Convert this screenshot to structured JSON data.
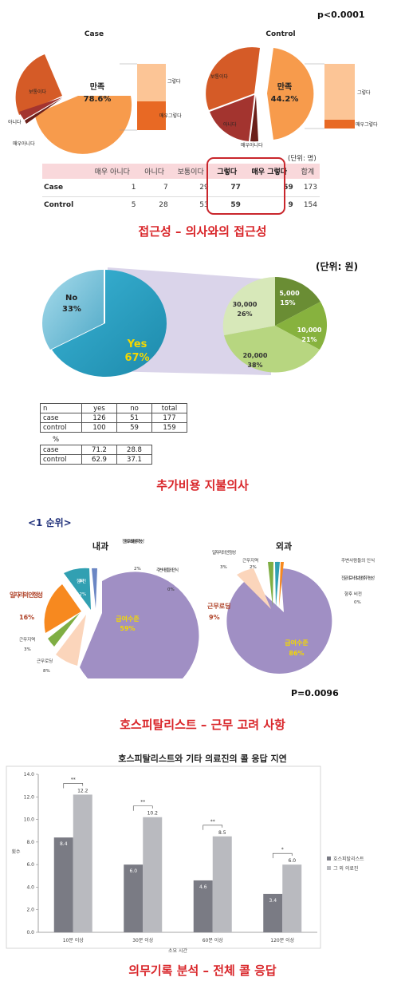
{
  "panel1": {
    "pvalue": "p<0.0001",
    "unit": "(단위: 명)",
    "caption": "접근성 – 의사와의 접근성",
    "case_pie": {
      "title": "Case",
      "main_label": "만족",
      "main_pct": "78.6%",
      "labels": [
        "보통이다",
        "아니다",
        "매우아니다"
      ],
      "bar_labels": [
        "그렇다",
        "매우그렇다"
      ]
    },
    "control_pie": {
      "title": "Control",
      "main_label": "만족",
      "main_pct": "44.2%",
      "labels": [
        "보통이다",
        "아니다",
        "매우아니다"
      ],
      "bar_labels": [
        "그렇다",
        "매우그렇다"
      ]
    },
    "table": {
      "headers": [
        "매우 아니다",
        "아니다",
        "보통이다",
        "그렇다",
        "매우 그렇다",
        "합계"
      ],
      "rows": [
        {
          "label": "Case",
          "values": [
            "1",
            "7",
            "29",
            "77",
            "59",
            "173"
          ]
        },
        {
          "label": "Control",
          "values": [
            "5",
            "28",
            "53",
            "59",
            "9",
            "154"
          ]
        }
      ]
    }
  },
  "panel2": {
    "unit": "(단위: 원)",
    "caption": "추가비용 지불의사",
    "main_pie": {
      "no_label": "No",
      "no_pct": "33%",
      "yes_label": "Yes",
      "yes_pct": "67%"
    },
    "detail_pie": {
      "slices": [
        {
          "label": "5,000",
          "pct": "15%"
        },
        {
          "label": "10,000",
          "pct": "21%"
        },
        {
          "label": "20,000",
          "pct": "38%"
        },
        {
          "label": "30,000",
          "pct": "26%"
        }
      ]
    },
    "table1": {
      "headers": [
        "n",
        "yes",
        "no",
        "total"
      ],
      "rows": [
        {
          "label": "case",
          "values": [
            "126",
            "51",
            "177"
          ]
        },
        {
          "label": "control",
          "values": [
            "100",
            "59",
            "159"
          ]
        }
      ]
    },
    "table2": {
      "headers": [
        "%",
        "",
        ""
      ],
      "rows": [
        {
          "label": "case",
          "values": [
            "71.2",
            "28.8"
          ]
        },
        {
          "label": "control",
          "values": [
            "62.9",
            "37.1"
          ]
        }
      ]
    }
  },
  "panel3": {
    "rank": "<1 순위>",
    "pvalue": "P=0.0096",
    "caption": "호스피탈리스트 – 근무 고려 사항",
    "internal": {
      "title": "내과",
      "labels": {
        "salary": "급여수준",
        "salary_pct": "59%",
        "job": "일자리의 안정성",
        "job_pct": "16%",
        "future": "향후 비전",
        "future_pct": "12%",
        "specialty": "전문의로서의 보람성취가능성",
        "specialty_pct": "2%",
        "perception": "주변사람들의 인식",
        "perception_pct": "0%",
        "region": "근무지역",
        "region_pct": "3%",
        "loading": "근무로딩",
        "loading_pct": "8%"
      }
    },
    "surgery": {
      "title": "외과",
      "labels": {
        "salary": "급여수준",
        "salary_pct": "86%",
        "loading": "근무로딩",
        "loading_pct": "9%",
        "job": "일자리의 안정성",
        "job_pct": "3%",
        "region": "근무지역",
        "region_pct": "2%",
        "perception": "주변사람들의 인식",
        "perception_pct": "",
        "specialty": "전문의로서의 보람성취가능성",
        "specialty_pct": "",
        "future": "향후 비전",
        "future_pct": "0%"
      }
    }
  },
  "panel4": {
    "caption": "의무기록 분석 – 전체 콜 응답",
    "colors": {
      "hospitalist": "#7a7b84",
      "other": "#b9babf"
    }
  },
  "chart_data": {
    "type": "bar",
    "title": "호스피탈리스트와 기타 의료진의 콜 응답 지연",
    "xlabel": "소요 시간",
    "ylabel": "횟수",
    "ylim": [
      0,
      14
    ],
    "yticks": [
      "0.0",
      "2.0",
      "4.0",
      "6.0",
      "8.0",
      "10.0",
      "12.0",
      "14.0"
    ],
    "categories": [
      "10분 이상",
      "30분 이상",
      "60분 이상",
      "120분 이상"
    ],
    "series": [
      {
        "name": "호스피탈리스트",
        "values": [
          8.4,
          6.0,
          4.6,
          3.4
        ],
        "labels": [
          "8.4",
          "6.0",
          "4.6",
          "3.4"
        ]
      },
      {
        "name": "그 외 의료진",
        "values": [
          12.2,
          10.2,
          8.5,
          6.0
        ],
        "labels": [
          "12.2",
          "10.2",
          "8.5",
          "6.0"
        ]
      }
    ],
    "significance": [
      "**",
      "**",
      "**",
      "*"
    ],
    "grid": false,
    "legend": "right"
  }
}
